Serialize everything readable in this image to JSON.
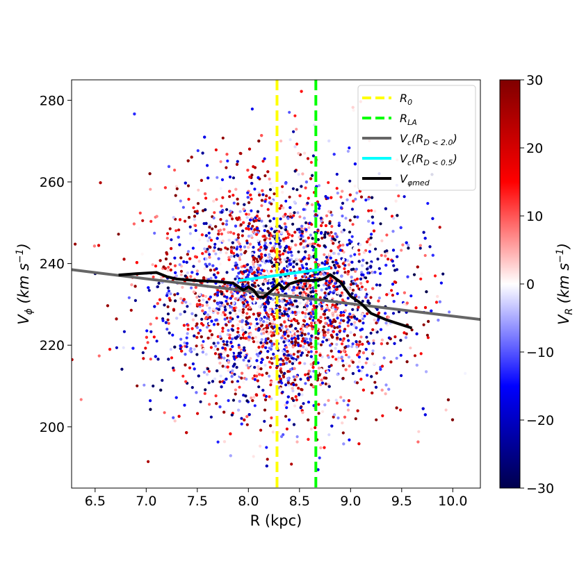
{
  "chart_data": {
    "type": "scatter",
    "title": "",
    "xlabel": "R (kpc)",
    "ylabel": "V_φ (km s⁻¹)",
    "xlim": [
      6.27,
      10.27
    ],
    "ylim": [
      185,
      285
    ],
    "x_ticks": [
      6.5,
      7.0,
      7.5,
      8.0,
      8.5,
      9.0,
      9.5,
      10.0
    ],
    "x_tick_labels": [
      "6.5",
      "7.0",
      "7.5",
      "8.0",
      "8.5",
      "9.0",
      "9.5",
      "10.0"
    ],
    "y_ticks": [
      200,
      220,
      240,
      260,
      280
    ],
    "y_tick_labels": [
      "200",
      "220",
      "240",
      "260",
      "280"
    ],
    "grid": false,
    "legend_position": "top-right",
    "colorbar": {
      "label": "V_R (km s⁻¹)",
      "range": [
        -30,
        30
      ],
      "ticks": [
        -30,
        -20,
        -10,
        0,
        10,
        20,
        30
      ],
      "tick_labels": [
        "−30",
        "−20",
        "−10",
        "0",
        "10",
        "20",
        "30"
      ],
      "colors": [
        "#00004c",
        "#0000ff",
        "#ffffff",
        "#ff0000",
        "#800000"
      ]
    },
    "scatter_cloud": {
      "description_note": "",
      "center_x": 8.3,
      "center_y": 232,
      "sigma_x": 0.6,
      "sigma_y": 14,
      "x_range": [
        6.27,
        10.27
      ],
      "y_range": [
        185,
        285
      ],
      "color_value_range": [
        -30,
        30
      ]
    },
    "series": [
      {
        "name": "R_0",
        "kind": "vline",
        "x": 8.28,
        "color": "#ffff00",
        "style": "dashed"
      },
      {
        "name": "R_LA",
        "kind": "vline",
        "x": 8.66,
        "color": "#00ff00",
        "style": "dashed"
      },
      {
        "name": "V_c(R_D<2.0)",
        "kind": "line",
        "color": "#666666",
        "x": [
          6.27,
          10.27
        ],
        "y": [
          238.5,
          226.3
        ]
      },
      {
        "name": "V_c(R_D<0.5)",
        "kind": "line",
        "color": "#00ffff",
        "x": [
          7.9,
          8.8
        ],
        "y": [
          235.8,
          238.9
        ]
      },
      {
        "name": "V_φmed",
        "kind": "line",
        "color": "#000000",
        "x": [
          6.73,
          6.9,
          7.1,
          7.2,
          7.3,
          7.5,
          7.7,
          7.85,
          7.95,
          8.0,
          8.05,
          8.1,
          8.15,
          8.2,
          8.3,
          8.35,
          8.4,
          8.5,
          8.6,
          8.7,
          8.75,
          8.8,
          8.9,
          9.0,
          9.1,
          9.2,
          9.35,
          9.6
        ],
        "y": [
          237.2,
          237.5,
          237.8,
          236.8,
          236.2,
          235.8,
          235.6,
          235.2,
          233.5,
          234.3,
          233.5,
          231.8,
          231.8,
          232.8,
          235.0,
          233.8,
          235.0,
          235.8,
          235.8,
          236.0,
          236.4,
          237.3,
          235.5,
          232.0,
          230.3,
          227.8,
          226.2,
          224.2
        ]
      }
    ],
    "legend": [
      {
        "label_main": "R",
        "label_sub": "0",
        "color": "#ffff00",
        "style": "dashed"
      },
      {
        "label_main": "R",
        "label_sub": "LA",
        "color": "#00ff00",
        "style": "dashed"
      },
      {
        "label_main": "V",
        "label_sub": "c",
        "label_tail": "(R",
        "label_sub2": "D < 2.0",
        "label_end": ")",
        "color": "#666666",
        "style": "solid"
      },
      {
        "label_main": "V",
        "label_sub": "c",
        "label_tail": "(R",
        "label_sub2": "D < 0.5",
        "label_end": ")",
        "color": "#00ffff",
        "style": "solid"
      },
      {
        "label_main": "V",
        "label_sub": "φmed",
        "color": "#000000",
        "style": "solid"
      }
    ]
  }
}
